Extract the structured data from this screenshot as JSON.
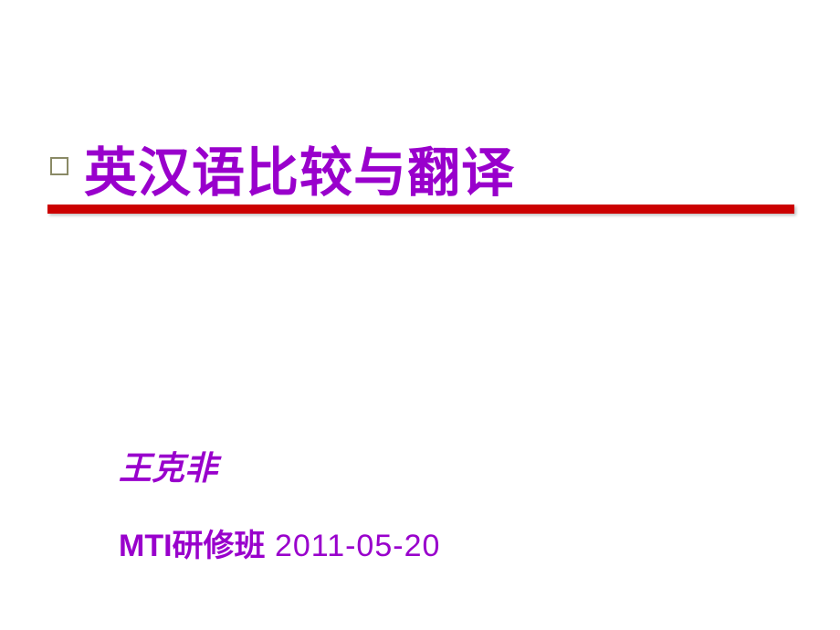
{
  "slide": {
    "title": "英汉语比较与翻译",
    "author": "王克非",
    "subtitle_prefix": "MTI研修班",
    "subtitle_date": "  2011-05-20",
    "colors": {
      "title_text": "#9900cc",
      "underline": "#cc0000",
      "bullet_border": "#8a8a66",
      "background": "#ffffff"
    },
    "typography": {
      "title_fontsize": 58,
      "author_fontsize": 36,
      "subtitle_fontsize": 34
    }
  }
}
